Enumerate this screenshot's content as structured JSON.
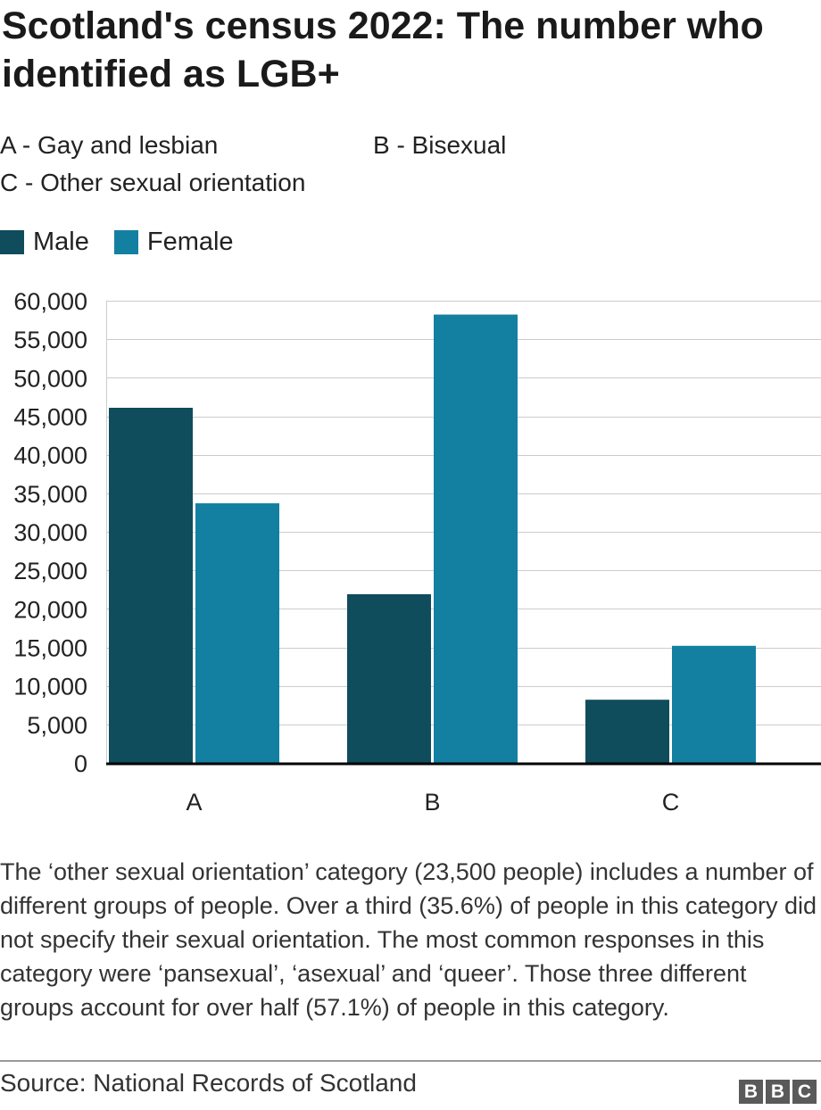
{
  "title": "Scotland's census 2022: The number who identified as LGB+",
  "category_keys": [
    "A - Gay and lesbian",
    "B - Bisexual",
    "C - Other sexual orientation"
  ],
  "legend": [
    {
      "label": "Male",
      "color": "#0f4c5c"
    },
    {
      "label": "Female",
      "color": "#1380a1"
    }
  ],
  "chart_data": {
    "type": "bar",
    "categories": [
      "A",
      "B",
      "C"
    ],
    "series": [
      {
        "name": "Male",
        "values": [
          46100,
          21900,
          8200
        ],
        "color": "#0f4c5c"
      },
      {
        "name": "Female",
        "values": [
          33700,
          58200,
          15200
        ],
        "color": "#1380a1"
      }
    ],
    "y_ticks": [
      "0",
      "5,000",
      "10,000",
      "15,000",
      "20,000",
      "25,000",
      "30,000",
      "35,000",
      "40,000",
      "45,000",
      "50,000",
      "55,000",
      "60,000"
    ],
    "ylim": [
      0,
      60000
    ],
    "grid": true
  },
  "note": "The ‘other sexual orientation’ category (23,500 people) includes a number of different groups of people. Over a third (35.6%) of people in this category did not specify their sexual orientation. The most common responses in this category were ‘pansexual’, ‘asexual’ and ‘queer’. Those three different groups account for over half (57.1%) of people in this category.",
  "source": "Source: National Records of Scotland",
  "logo": [
    "B",
    "B",
    "C"
  ]
}
